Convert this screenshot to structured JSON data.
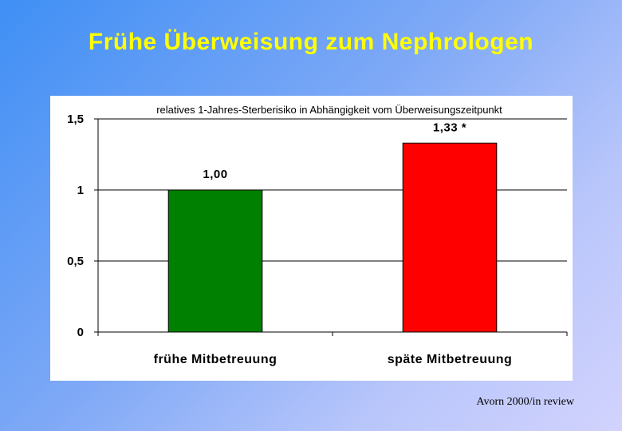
{
  "slide": {
    "title": "Frühe Überweisung zum Nephrologen",
    "footer": "Avorn 2000/in review"
  },
  "colors": {
    "title": "#ffff00",
    "bar_early": "#008000",
    "bar_late": "#ff0000"
  },
  "chart_data": {
    "type": "bar",
    "title": "relatives 1-Jahres-Sterberisiko in Abhängigkeit vom Überweisungszeitpunkt",
    "categories": [
      "frühe Mitbetreuung",
      "späte Mitbetreuung"
    ],
    "values": [
      1.0,
      1.33
    ],
    "data_labels": [
      "1,00",
      "1,33  *"
    ],
    "bar_colors": [
      "#008000",
      "#ff0000"
    ],
    "ylim": [
      0,
      1.5
    ],
    "yticks": [
      0,
      0.5,
      1,
      1.5
    ],
    "ytick_labels": [
      "0",
      "0,5",
      "1",
      "1,5"
    ],
    "xlabel": "",
    "ylabel": "",
    "grid": true,
    "legend": false
  }
}
